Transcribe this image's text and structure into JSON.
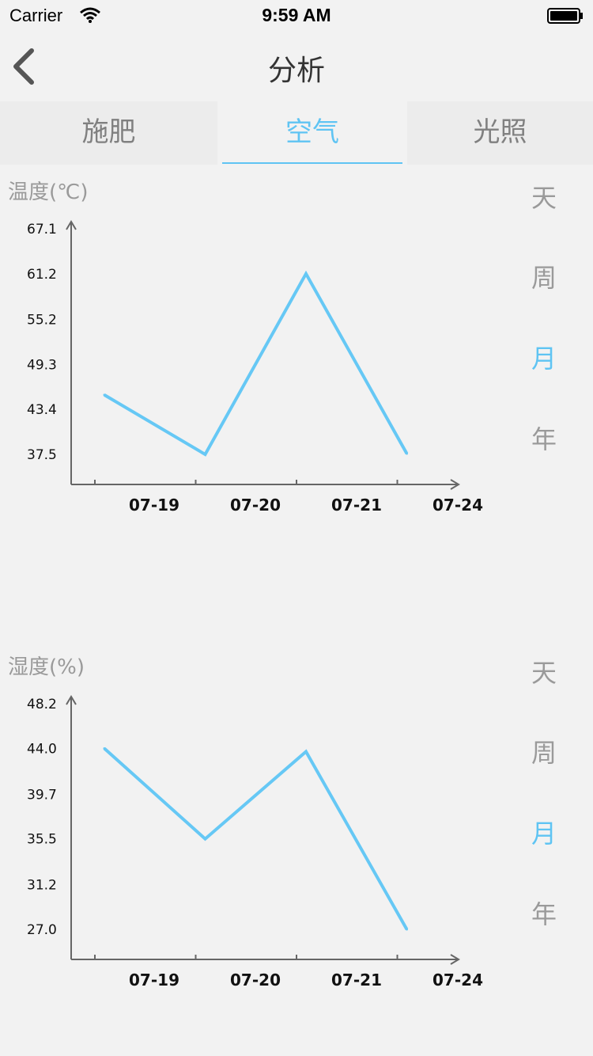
{
  "status_bar": {
    "carrier": "Carrier",
    "time": "9:59 AM"
  },
  "nav": {
    "title": "分析",
    "back_icon": "chevron-left-icon"
  },
  "tabs": [
    {
      "label": "施肥",
      "active": false
    },
    {
      "label": "空气",
      "active": true
    },
    {
      "label": "光照",
      "active": false
    }
  ],
  "colors": {
    "accent": "#5fc4f3",
    "line": "#66c8f5",
    "axis": "#666666",
    "inactive": "#9a9a9a"
  },
  "periods_temp": [
    "天",
    "周",
    "月",
    "年"
  ],
  "periods_hum": [
    "天",
    "周",
    "月",
    "年"
  ],
  "active_period": "月",
  "chart_data": [
    {
      "type": "line",
      "title": "温度(℃)",
      "x_ticks": [
        "07-19",
        "07-20",
        "07-21",
        "07-24"
      ],
      "y_ticks": [
        "67.1",
        "61.2",
        "55.2",
        "49.3",
        "43.4",
        "37.5"
      ],
      "ylim": [
        33.6,
        67.1
      ],
      "series": [
        {
          "values": [
            45.3,
            37.5,
            61.2,
            37.6
          ]
        }
      ],
      "grid": false
    },
    {
      "type": "line",
      "title": "湿度(%)",
      "x_ticks": [
        "07-19",
        "07-20",
        "07-21",
        "07-24"
      ],
      "y_ticks": [
        "48.2",
        "44.0",
        "39.7",
        "35.5",
        "31.2",
        "27.0"
      ],
      "ylim": [
        24.2,
        48.2
      ],
      "series": [
        {
          "values": [
            44.0,
            35.5,
            43.7,
            27.0
          ]
        }
      ],
      "grid": false
    }
  ]
}
